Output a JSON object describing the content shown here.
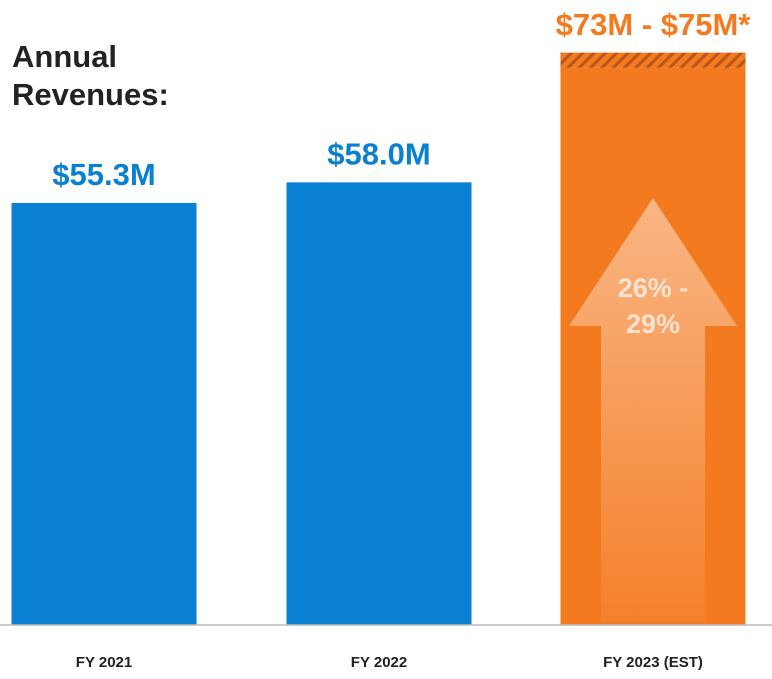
{
  "chart_data": {
    "type": "bar",
    "title": "Annual Revenues:",
    "categories": [
      "FY 2021",
      "FY 2022",
      "FY 2023 (EST)"
    ],
    "values": [
      55.3,
      58.0,
      73
    ],
    "range_high": [
      null,
      null,
      75
    ],
    "value_labels": [
      "$55.3M",
      "$58.0M",
      "$73M - $75M*"
    ],
    "colors": [
      "#0a80d2",
      "#0a80d2",
      "#f47a20"
    ],
    "annotation": "26% - 29%",
    "ylim": [
      0,
      76
    ]
  }
}
